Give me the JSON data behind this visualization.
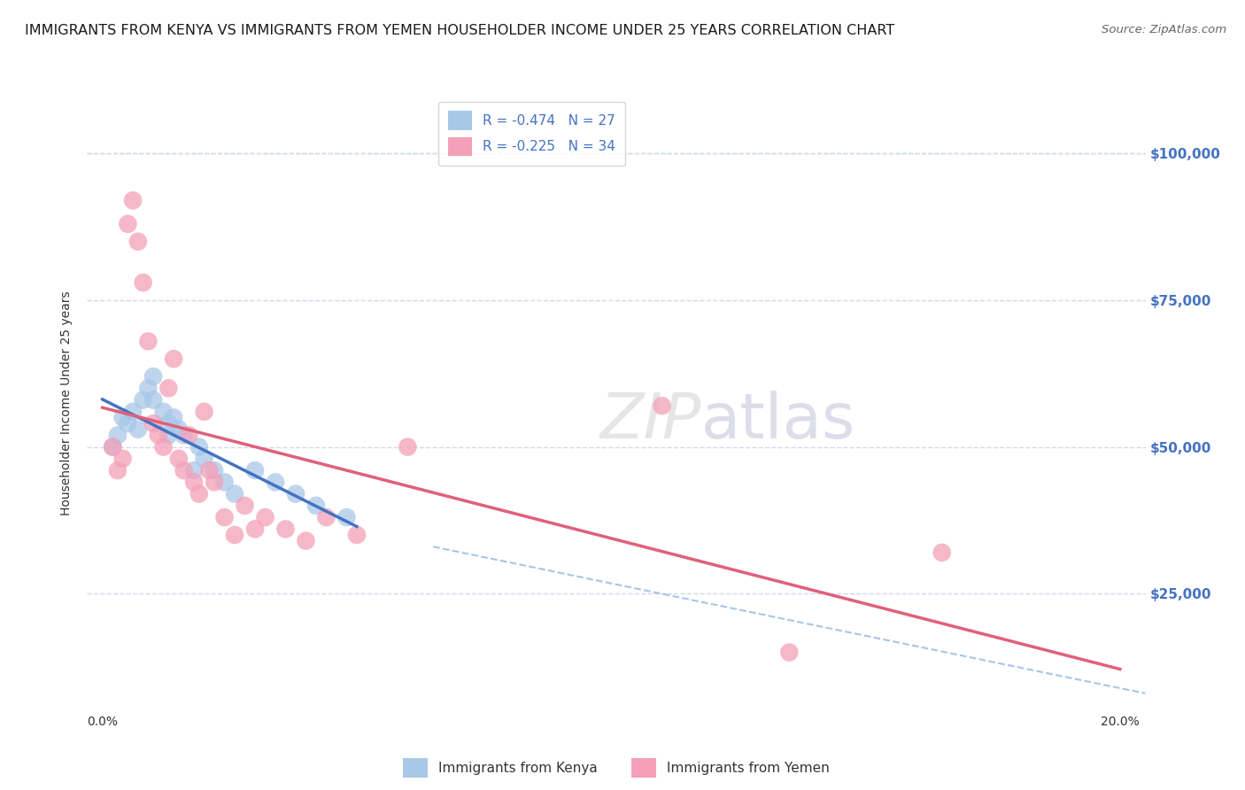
{
  "title": "IMMIGRANTS FROM KENYA VS IMMIGRANTS FROM YEMEN HOUSEHOLDER INCOME UNDER 25 YEARS CORRELATION CHART",
  "source": "Source: ZipAtlas.com",
  "ylabel": "Householder Income Under 25 years",
  "xlim": [
    -0.003,
    0.205
  ],
  "ylim": [
    5000,
    110000
  ],
  "kenya_R": -0.474,
  "kenya_N": 27,
  "yemen_R": -0.225,
  "yemen_N": 34,
  "kenya_color": "#a8c8e8",
  "kenya_line_color": "#4472c4",
  "yemen_color": "#f4a0b8",
  "yemen_line_color": "#e0607a",
  "dashed_line_color": "#90b8e0",
  "legend_label_kenya": "Immigrants from Kenya",
  "legend_label_yemen": "Immigrants from Yemen",
  "kenya_scatter_x": [
    0.002,
    0.003,
    0.004,
    0.005,
    0.006,
    0.007,
    0.008,
    0.009,
    0.01,
    0.01,
    0.012,
    0.013,
    0.013,
    0.014,
    0.015,
    0.016,
    0.018,
    0.019,
    0.02,
    0.022,
    0.024,
    0.026,
    0.03,
    0.034,
    0.038,
    0.042,
    0.048
  ],
  "kenya_scatter_y": [
    50000,
    52000,
    55000,
    54000,
    56000,
    53000,
    58000,
    60000,
    62000,
    58000,
    56000,
    52000,
    54000,
    55000,
    53000,
    52000,
    46000,
    50000,
    48000,
    46000,
    44000,
    42000,
    46000,
    44000,
    42000,
    40000,
    38000
  ],
  "yemen_scatter_x": [
    0.002,
    0.003,
    0.004,
    0.005,
    0.006,
    0.007,
    0.008,
    0.009,
    0.01,
    0.011,
    0.012,
    0.013,
    0.014,
    0.015,
    0.016,
    0.017,
    0.018,
    0.019,
    0.02,
    0.021,
    0.022,
    0.024,
    0.026,
    0.028,
    0.03,
    0.032,
    0.036,
    0.04,
    0.044,
    0.05,
    0.06,
    0.11,
    0.135,
    0.165
  ],
  "yemen_scatter_y": [
    50000,
    46000,
    48000,
    88000,
    92000,
    85000,
    78000,
    68000,
    54000,
    52000,
    50000,
    60000,
    65000,
    48000,
    46000,
    52000,
    44000,
    42000,
    56000,
    46000,
    44000,
    38000,
    35000,
    40000,
    36000,
    38000,
    36000,
    34000,
    38000,
    35000,
    50000,
    57000,
    15000,
    32000
  ],
  "title_fontsize": 11.5,
  "source_fontsize": 9.5,
  "axis_label_fontsize": 10,
  "tick_fontsize": 10,
  "legend_fontsize": 11,
  "right_label_color": "#4472c4",
  "background_color": "#ffffff",
  "grid_color": "#d0d8e8",
  "grid_style": "--"
}
